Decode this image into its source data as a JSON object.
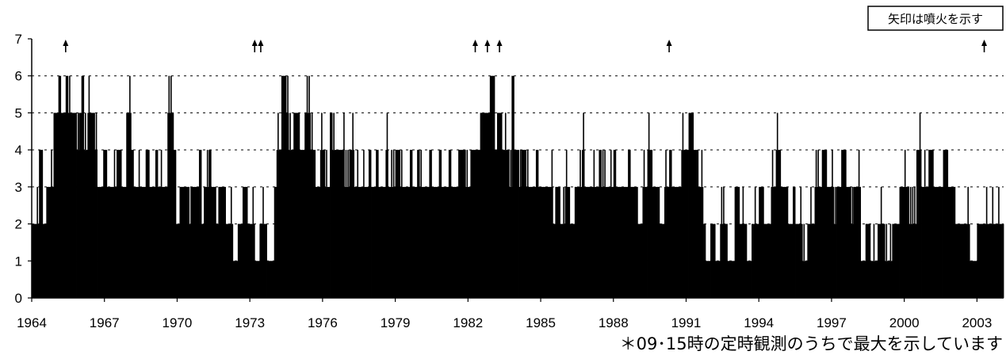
{
  "chart_data": {
    "type": "bar",
    "xlim": [
      1964,
      2004.1
    ],
    "ylim": [
      0,
      7
    ],
    "y_ticks": [
      "0",
      "1",
      "2",
      "3",
      "4",
      "5",
      "6",
      "7"
    ],
    "x_ticks": [
      "1964",
      "1967",
      "1970",
      "1973",
      "1976",
      "1979",
      "1982",
      "1985",
      "1988",
      "1991",
      "1994",
      "1997",
      "2000",
      "2003"
    ],
    "grid": "horizontal dashed",
    "bar_color": "#000000",
    "segments": [
      [
        1964.0,
        2
      ],
      [
        1964.3,
        4
      ],
      [
        1964.45,
        2
      ],
      [
        1964.6,
        3
      ],
      [
        1964.75,
        3
      ],
      [
        1964.9,
        5
      ],
      [
        1965.1,
        6
      ],
      [
        1965.2,
        5
      ],
      [
        1965.4,
        6
      ],
      [
        1965.5,
        5
      ],
      [
        1965.85,
        4
      ],
      [
        1965.95,
        5
      ],
      [
        1966.05,
        6
      ],
      [
        1966.15,
        4
      ],
      [
        1966.3,
        5
      ],
      [
        1966.6,
        4
      ],
      [
        1966.7,
        3
      ],
      [
        1966.95,
        4
      ],
      [
        1967.1,
        3
      ],
      [
        1967.5,
        4
      ],
      [
        1967.7,
        3
      ],
      [
        1967.9,
        5
      ],
      [
        1968.1,
        4
      ],
      [
        1968.2,
        3
      ],
      [
        1968.7,
        4
      ],
      [
        1968.85,
        3
      ],
      [
        1969.1,
        4
      ],
      [
        1969.2,
        3
      ],
      [
        1969.6,
        5
      ],
      [
        1969.85,
        4
      ],
      [
        1969.95,
        2
      ],
      [
        1970.1,
        3
      ],
      [
        1970.5,
        2
      ],
      [
        1970.55,
        3
      ],
      [
        1970.9,
        4
      ],
      [
        1971.0,
        2
      ],
      [
        1971.1,
        3
      ],
      [
        1971.3,
        4
      ],
      [
        1971.4,
        3
      ],
      [
        1971.6,
        2
      ],
      [
        1971.7,
        3
      ],
      [
        1972.0,
        2
      ],
      [
        1972.3,
        1
      ],
      [
        1972.5,
        2
      ],
      [
        1972.7,
        3
      ],
      [
        1972.9,
        2
      ],
      [
        1973.2,
        1
      ],
      [
        1973.4,
        2
      ],
      [
        1973.7,
        1
      ],
      [
        1974.0,
        3
      ],
      [
        1974.1,
        4
      ],
      [
        1974.3,
        6
      ],
      [
        1974.5,
        5
      ],
      [
        1974.6,
        4
      ],
      [
        1974.8,
        5
      ],
      [
        1975.05,
        4
      ],
      [
        1975.3,
        5
      ],
      [
        1975.5,
        4
      ],
      [
        1975.7,
        3
      ],
      [
        1975.9,
        4
      ],
      [
        1976.1,
        3
      ],
      [
        1976.3,
        5
      ],
      [
        1976.4,
        4
      ],
      [
        1976.9,
        3
      ],
      [
        1977.1,
        4
      ],
      [
        1977.3,
        3
      ],
      [
        1977.9,
        4
      ],
      [
        1978.0,
        3
      ],
      [
        1978.2,
        4
      ],
      [
        1978.3,
        3
      ],
      [
        1978.6,
        4
      ],
      [
        1978.7,
        3
      ],
      [
        1979.0,
        4
      ],
      [
        1979.2,
        3
      ],
      [
        1979.6,
        4
      ],
      [
        1979.7,
        3
      ],
      [
        1979.9,
        4
      ],
      [
        1980.0,
        3
      ],
      [
        1980.4,
        4
      ],
      [
        1980.5,
        3
      ],
      [
        1980.8,
        4
      ],
      [
        1980.9,
        3
      ],
      [
        1981.2,
        4
      ],
      [
        1981.3,
        3
      ],
      [
        1981.6,
        4
      ],
      [
        1981.9,
        3
      ],
      [
        1982.1,
        4
      ],
      [
        1982.5,
        5
      ],
      [
        1982.9,
        6
      ],
      [
        1983.1,
        4
      ],
      [
        1983.2,
        5
      ],
      [
        1983.4,
        4
      ],
      [
        1983.7,
        3
      ],
      [
        1983.8,
        6
      ],
      [
        1983.9,
        4
      ],
      [
        1984.1,
        3
      ],
      [
        1984.2,
        4
      ],
      [
        1984.4,
        3
      ],
      [
        1984.8,
        4
      ],
      [
        1984.9,
        3
      ],
      [
        1985.5,
        2
      ],
      [
        1985.6,
        3
      ],
      [
        1985.8,
        2
      ],
      [
        1986.0,
        3
      ],
      [
        1986.2,
        2
      ],
      [
        1986.4,
        3
      ],
      [
        1986.7,
        4
      ],
      [
        1986.8,
        3
      ],
      [
        1987.4,
        4
      ],
      [
        1987.5,
        3
      ],
      [
        1988.0,
        4
      ],
      [
        1988.1,
        3
      ],
      [
        1988.6,
        4
      ],
      [
        1988.7,
        3
      ],
      [
        1989.0,
        2
      ],
      [
        1989.2,
        3
      ],
      [
        1989.4,
        4
      ],
      [
        1989.6,
        3
      ],
      [
        1989.9,
        2
      ],
      [
        1990.1,
        3
      ],
      [
        1990.3,
        4
      ],
      [
        1990.4,
        3
      ],
      [
        1990.8,
        4
      ],
      [
        1991.1,
        5
      ],
      [
        1991.3,
        4
      ],
      [
        1991.5,
        3
      ],
      [
        1991.7,
        2
      ],
      [
        1991.8,
        1
      ],
      [
        1992.0,
        2
      ],
      [
        1992.2,
        1
      ],
      [
        1992.4,
        2
      ],
      [
        1992.7,
        1
      ],
      [
        1993.0,
        3
      ],
      [
        1993.2,
        2
      ],
      [
        1993.5,
        1
      ],
      [
        1993.7,
        2
      ],
      [
        1994.0,
        3
      ],
      [
        1994.2,
        2
      ],
      [
        1994.5,
        3
      ],
      [
        1994.7,
        4
      ],
      [
        1994.9,
        3
      ],
      [
        1995.2,
        2
      ],
      [
        1995.4,
        3
      ],
      [
        1995.5,
        2
      ],
      [
        1995.8,
        1
      ],
      [
        1996.0,
        2
      ],
      [
        1996.3,
        3
      ],
      [
        1996.6,
        4
      ],
      [
        1996.8,
        3
      ],
      [
        1997.1,
        2
      ],
      [
        1997.2,
        3
      ],
      [
        1997.4,
        4
      ],
      [
        1997.6,
        3
      ],
      [
        1997.8,
        2
      ],
      [
        1997.9,
        3
      ],
      [
        1998.2,
        1
      ],
      [
        1998.4,
        2
      ],
      [
        1998.6,
        1
      ],
      [
        1998.9,
        2
      ],
      [
        1999.2,
        1
      ],
      [
        1999.5,
        2
      ],
      [
        1999.8,
        3
      ],
      [
        2000.2,
        2
      ],
      [
        2000.5,
        4
      ],
      [
        2000.7,
        3
      ],
      [
        2001.0,
        4
      ],
      [
        2001.2,
        3
      ],
      [
        2001.6,
        4
      ],
      [
        2001.8,
        3
      ],
      [
        2002.1,
        2
      ],
      [
        2002.4,
        2
      ],
      [
        2002.7,
        1
      ],
      [
        2003.0,
        2
      ]
    ],
    "arrows": [
      1965.4,
      1973.2,
      1973.45,
      1982.3,
      1982.8,
      1983.3,
      1990.3,
      2003.3
    ],
    "legend_box": "矢印は噴火を示す",
    "note": "＊09･15時の定時観測のうちで最大を示しています"
  }
}
